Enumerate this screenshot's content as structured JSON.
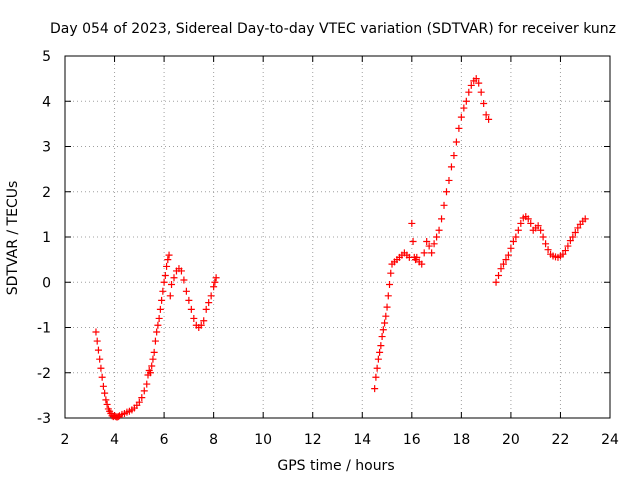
{
  "chart_data": {
    "type": "scatter",
    "title": "Day 054 of 2023, Sidereal Day-to-day VTEC variation (SDTVAR) for receiver kunz",
    "xlabel": "GPS time / hours",
    "ylabel": "SDTVAR / TECUs",
    "xlim": [
      2,
      24
    ],
    "ylim": [
      -3,
      5
    ],
    "xticks": [
      "2",
      "4",
      "6",
      "8",
      "10",
      "12",
      "14",
      "16",
      "18",
      "20",
      "22",
      "24"
    ],
    "yticks": [
      "-3",
      "-2",
      "-1",
      "0",
      "1",
      "2",
      "3",
      "4",
      "5"
    ],
    "grid": true,
    "marker": "plus",
    "color": "#ff0000",
    "series": [
      {
        "x": [
          3.25,
          3.3,
          3.35,
          3.4,
          3.45,
          3.5,
          3.55,
          3.6,
          3.65,
          3.7,
          3.75,
          3.8,
          3.85,
          3.9,
          3.95,
          4.0,
          4.05,
          4.1,
          4.15,
          4.2,
          4.3,
          4.4,
          4.5,
          4.6,
          4.7,
          4.8,
          4.9,
          5.0,
          5.1,
          5.2,
          5.3,
          5.35,
          5.4,
          5.45,
          5.5,
          5.55,
          5.6,
          5.65,
          5.7,
          5.75,
          5.8,
          5.85,
          5.9,
          5.95,
          6.0,
          6.05,
          6.1,
          6.15,
          6.2,
          6.25,
          6.3,
          6.4,
          6.5,
          6.6,
          6.7,
          6.8,
          6.9,
          7.0,
          7.1,
          7.2,
          7.3,
          7.4,
          7.5,
          7.6,
          7.7,
          7.8,
          7.9,
          8.0,
          8.05,
          8.1
        ],
        "y": [
          -1.1,
          -1.3,
          -1.5,
          -1.7,
          -1.9,
          -2.1,
          -2.3,
          -2.45,
          -2.6,
          -2.7,
          -2.8,
          -2.85,
          -2.9,
          -2.95,
          -2.97,
          -2.95,
          -2.97,
          -2.98,
          -2.97,
          -2.95,
          -2.92,
          -2.9,
          -2.87,
          -2.85,
          -2.82,
          -2.78,
          -2.72,
          -2.65,
          -2.55,
          -2.4,
          -2.25,
          -2.05,
          -1.95,
          -2.0,
          -1.85,
          -1.7,
          -1.55,
          -1.3,
          -1.1,
          -0.95,
          -0.8,
          -0.6,
          -0.4,
          -0.2,
          0.0,
          0.15,
          0.35,
          0.5,
          0.6,
          -0.3,
          -0.05,
          0.1,
          0.25,
          0.3,
          0.25,
          0.05,
          -0.2,
          -0.4,
          -0.6,
          -0.8,
          -0.95,
          -1.0,
          -0.95,
          -0.85,
          -0.6,
          -0.45,
          -0.3,
          -0.1,
          0.0,
          0.1
        ]
      },
      {
        "x": [
          14.5,
          14.55,
          14.6,
          14.65,
          14.7,
          14.75,
          14.8,
          14.85,
          14.9,
          14.95,
          15.0,
          15.05,
          15.1,
          15.15,
          15.2,
          15.3,
          15.4,
          15.5,
          15.6,
          15.7,
          15.8,
          15.9,
          16.0,
          16.05,
          16.1,
          16.15,
          16.2,
          16.3,
          16.4,
          16.5,
          16.6,
          16.7,
          16.8,
          16.9,
          17.0,
          17.1,
          17.2,
          17.3,
          17.4,
          17.5,
          17.6,
          17.7,
          17.8,
          17.9,
          18.0,
          18.1,
          18.2,
          18.3,
          18.4,
          18.5,
          18.6,
          18.7,
          18.8,
          18.9,
          19.0,
          19.1
        ],
        "y": [
          -2.35,
          -2.1,
          -1.9,
          -1.7,
          -1.55,
          -1.4,
          -1.2,
          -1.05,
          -0.9,
          -0.75,
          -0.55,
          -0.3,
          -0.05,
          0.2,
          0.4,
          0.45,
          0.5,
          0.55,
          0.6,
          0.65,
          0.6,
          0.55,
          1.3,
          0.9,
          0.55,
          0.5,
          0.55,
          0.45,
          0.4,
          0.65,
          0.9,
          0.8,
          0.65,
          0.85,
          1.0,
          1.15,
          1.4,
          1.7,
          2.0,
          2.25,
          2.55,
          2.8,
          3.1,
          3.4,
          3.65,
          3.85,
          4.0,
          4.2,
          4.35,
          4.45,
          4.5,
          4.4,
          4.2,
          3.95,
          3.7,
          3.6
        ]
      },
      {
        "x": [
          19.4,
          19.5,
          19.6,
          19.7,
          19.8,
          19.9,
          20.0,
          20.1,
          20.2,
          20.3,
          20.4,
          20.5,
          20.6,
          20.7,
          20.8,
          20.9,
          21.0,
          21.1,
          21.2,
          21.3,
          21.4,
          21.5,
          21.6,
          21.7,
          21.8,
          21.9,
          22.0,
          22.1,
          22.2,
          22.3,
          22.4,
          22.5,
          22.6,
          22.7,
          22.8,
          22.9,
          23.0
        ],
        "y": [
          0.0,
          0.15,
          0.3,
          0.4,
          0.5,
          0.6,
          0.75,
          0.9,
          1.0,
          1.15,
          1.3,
          1.42,
          1.45,
          1.4,
          1.3,
          1.15,
          1.2,
          1.25,
          1.15,
          1.0,
          0.85,
          0.72,
          0.62,
          0.58,
          0.56,
          0.55,
          0.58,
          0.62,
          0.7,
          0.8,
          0.92,
          1.0,
          1.1,
          1.2,
          1.28,
          1.35,
          1.4
        ]
      }
    ]
  }
}
